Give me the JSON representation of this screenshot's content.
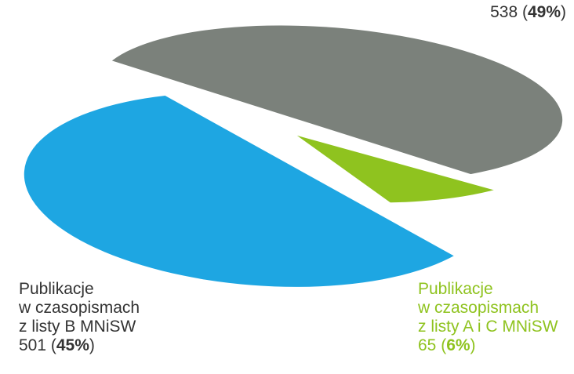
{
  "chart_data": {
    "type": "pie",
    "slices": [
      {
        "lines": [],
        "value": 538,
        "value_text": "538",
        "percent": 49,
        "percent_text": "49%",
        "color": "#7b817b"
      },
      {
        "lines": [
          "Publikacje",
          "w czasopismach",
          "z listy B MNiSW"
        ],
        "value": 501,
        "value_text": "501",
        "percent": 45,
        "percent_text": "45%",
        "color": "#1ea6e2"
      },
      {
        "lines": [
          "Publikacje",
          "w czasopismach",
          "z listy A i C MNiSW"
        ],
        "value": 65,
        "value_text": "65",
        "percent": 6,
        "percent_text": "6%",
        "color": "#8fc31f"
      }
    ]
  }
}
